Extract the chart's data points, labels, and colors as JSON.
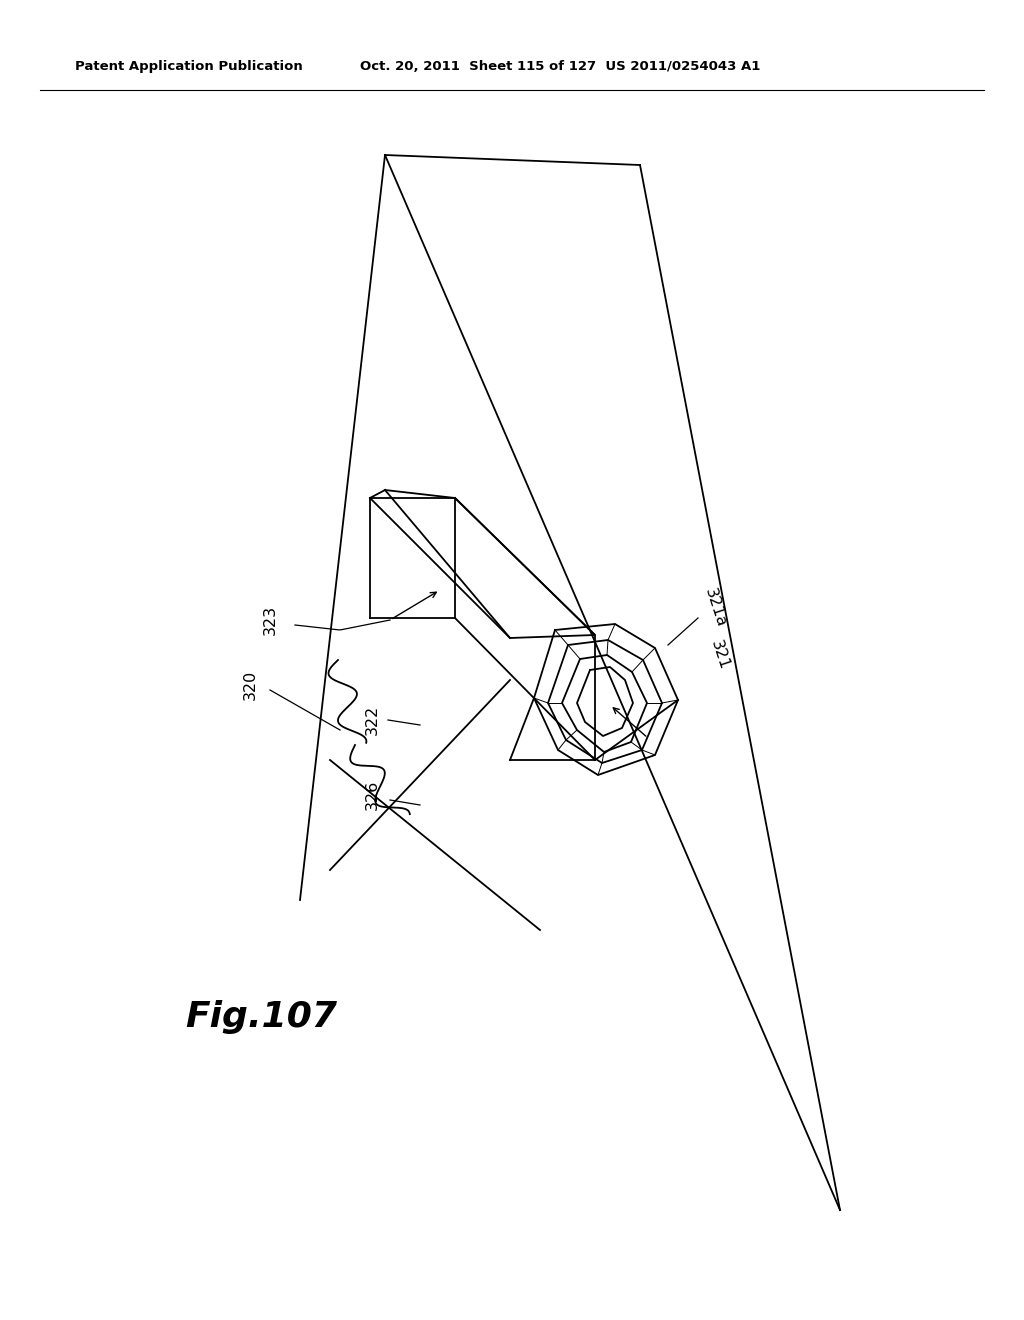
{
  "header_left": "Patent Application Publication",
  "header_right": "Oct. 20, 2011  Sheet 115 of 127  US 2011/0254043 A1",
  "fig_label": "Fig.107",
  "bg_color": "#ffffff",
  "line_color": "#000000",
  "label_color": "#000000",
  "lw": 1.3
}
